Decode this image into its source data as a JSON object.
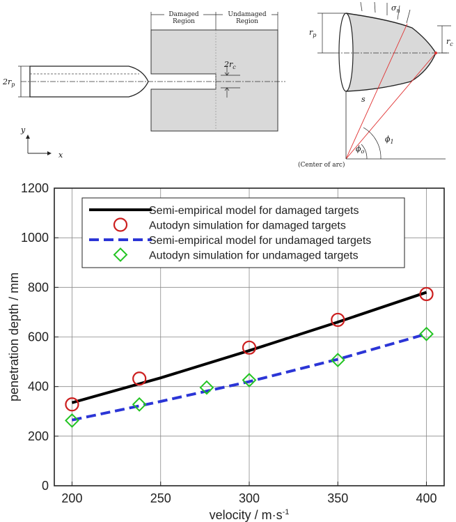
{
  "diagram": {
    "damaged_region": "Damaged\nRegion",
    "undamaged_region": "Undamaged\nRegion",
    "two_rp": "2r",
    "rp_sub": "p",
    "two_rc": "2r",
    "rc_sub": "c",
    "y_axis": "y",
    "x_axis": "x",
    "sigma": "σ",
    "sigma_sub": "n",
    "rp_right": "r",
    "rp_right_sub": "p",
    "rc_right": "r",
    "rc_right_sub": "c",
    "s_label": "s",
    "phi1": "ϕ",
    "phi1_sub": "1",
    "phi0": "ϕ",
    "phi0_sub": "o",
    "center_of_arc": "(Center of arc)"
  },
  "chart_data": {
    "type": "line",
    "xlabel": "velocity / m·s",
    "xlabel_sup": "-1",
    "ylabel": "penetration depth / mm",
    "xlim": [
      190,
      410
    ],
    "ylim": [
      0,
      1200
    ],
    "xticks": [
      200,
      250,
      300,
      350,
      400
    ],
    "yticks": [
      0,
      200,
      400,
      600,
      800,
      1000,
      1200
    ],
    "grid": true,
    "legend_position": "top-left",
    "series": [
      {
        "name": "Semi-empirical model for damaged targets",
        "kind": "line",
        "color": "#000000",
        "dash": "solid",
        "x": [
          200,
          250,
          300,
          350,
          400
        ],
        "y": [
          335,
          435,
          545,
          660,
          780
        ]
      },
      {
        "name": "Autodyn simulation for damaged targets",
        "kind": "marker",
        "marker": "circle",
        "color": "#cc1f1f",
        "x": [
          200,
          238,
          300,
          350,
          400
        ],
        "y": [
          328,
          432,
          557,
          669,
          773
        ]
      },
      {
        "name": "Semi-empirical model for undamaged targets",
        "kind": "line",
        "color": "#2b35d6",
        "dash": "dashed",
        "x": [
          200,
          250,
          300,
          350,
          400
        ],
        "y": [
          265,
          340,
          420,
          510,
          612
        ]
      },
      {
        "name": "Autodyn simulation for undamaged targets",
        "kind": "marker",
        "marker": "diamond",
        "color": "#22c422",
        "x": [
          200,
          238,
          276,
          300,
          350,
          400
        ],
        "y": [
          263,
          328,
          396,
          426,
          507,
          612
        ]
      }
    ]
  }
}
